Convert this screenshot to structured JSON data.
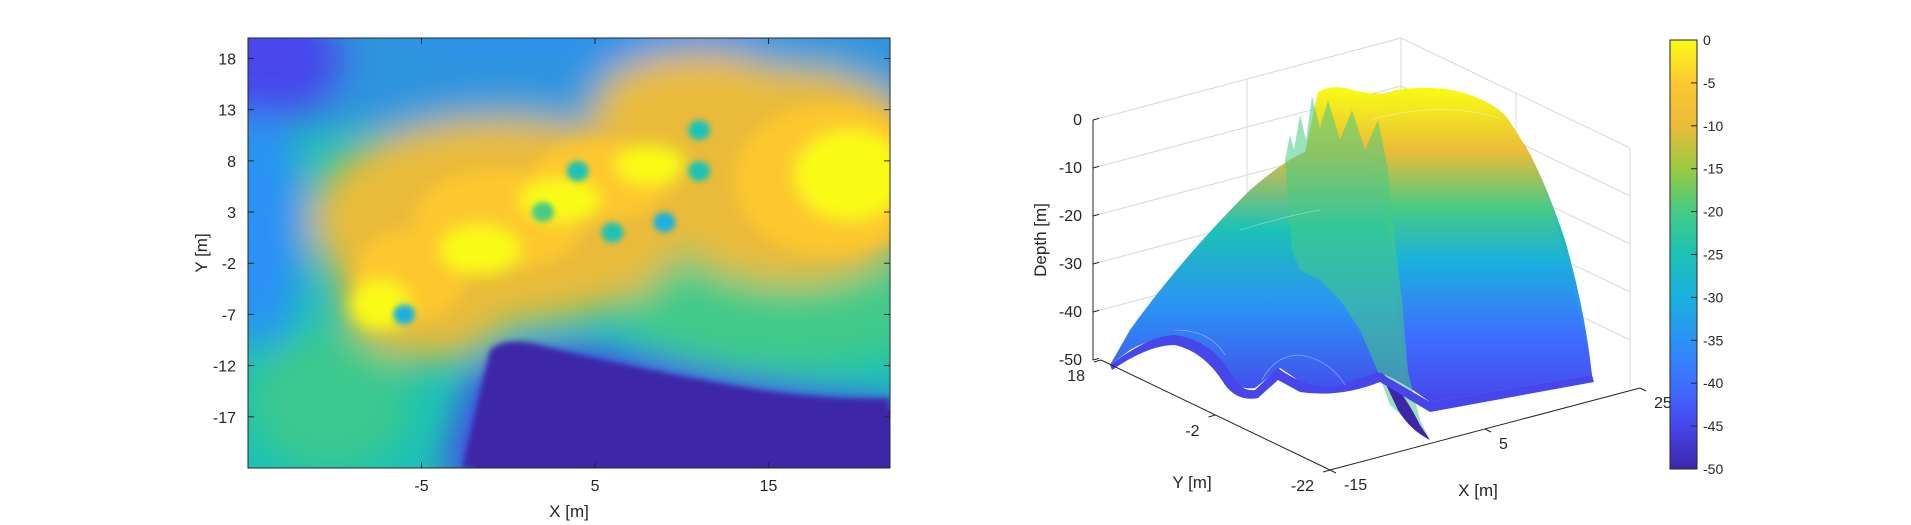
{
  "chart_data": [
    {
      "type": "heatmap",
      "title": "",
      "xlabel": "X [m]",
      "ylabel": "Y [m]",
      "x_ticks": [
        -5,
        5,
        15
      ],
      "y_ticks": [
        18,
        13,
        8,
        3,
        -2,
        -7,
        -12,
        -17
      ],
      "xlim": [
        -15,
        22
      ],
      "ylim": [
        -22,
        20
      ],
      "colormap": "parula",
      "clim": [
        -50,
        0
      ],
      "features": [
        {
          "kind": "shallow-ridge",
          "points": [
            [
              -7,
              -7
            ],
            [
              -3,
              0
            ],
            [
              1,
              4
            ],
            [
              4,
              7
            ],
            [
              8,
              8
            ],
            [
              14,
              7
            ],
            [
              19,
              5
            ]
          ],
          "depth": -3
        },
        {
          "kind": "deep-region",
          "x": [
            -2,
            22
          ],
          "y": [
            -22,
            -11
          ],
          "depth": -50
        },
        {
          "kind": "hole",
          "x": 11,
          "y": 11,
          "depth": -27
        },
        {
          "kind": "hole",
          "x": 11,
          "y": 7,
          "depth": -27
        },
        {
          "kind": "hole",
          "x": 4,
          "y": 7,
          "depth": -24
        },
        {
          "kind": "hole",
          "x": 2,
          "y": 3,
          "depth": -22
        },
        {
          "kind": "hole",
          "x": 6,
          "y": 1,
          "depth": -27
        },
        {
          "kind": "hole",
          "x": 9,
          "y": 2,
          "depth": -28
        },
        {
          "kind": "hole",
          "x": -6,
          "y": -7,
          "depth": -30
        }
      ]
    },
    {
      "type": "surface",
      "title": "",
      "xlabel": "X [m]",
      "ylabel": "Y [m]",
      "zlabel": "Depth [m]",
      "x_ticks": [
        -15,
        5,
        25
      ],
      "y_ticks": [
        18,
        -2,
        -22
      ],
      "z_ticks": [
        0,
        -10,
        -20,
        -30,
        -40,
        -50
      ],
      "xlim": [
        -15,
        25
      ],
      "ylim": [
        -22,
        18
      ],
      "zlim": [
        -50,
        0
      ],
      "colormap": "parula"
    }
  ],
  "colorbar": {
    "ticks": [
      "0",
      "-5",
      "-10",
      "-15",
      "-20",
      "-25",
      "-30",
      "-35",
      "-40",
      "-45",
      "-50"
    ],
    "range": [
      -50,
      0
    ],
    "stops": [
      "#3e26a8",
      "#4746eb",
      "#3e70ff",
      "#2b92f5",
      "#1ab0de",
      "#1cc2b5",
      "#45cb85",
      "#9bca40",
      "#eabb3a",
      "#fdc82f",
      "#f9fb15"
    ]
  }
}
